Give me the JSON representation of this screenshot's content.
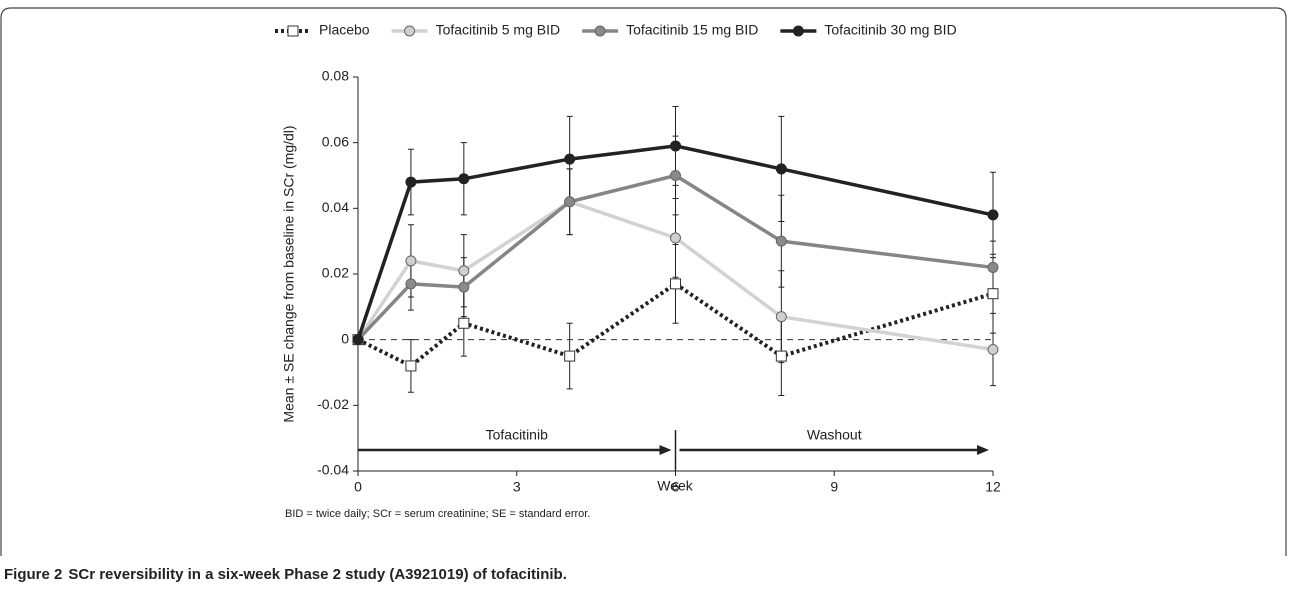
{
  "chart_data": {
    "type": "line",
    "x_label": "Week",
    "y_label": "Mean ± SE change from baseline in SCr (mg/dl)",
    "x": [
      0,
      1,
      2,
      4,
      6,
      8,
      12
    ],
    "xlim": [
      0,
      12
    ],
    "xticks": [
      0,
      3,
      6,
      9,
      12
    ],
    "ylim": [
      -0.04,
      0.08
    ],
    "yticks": [
      -0.04,
      -0.02,
      0,
      0.02,
      0.04,
      0.06,
      0.08
    ],
    "reference_line": 0,
    "series": [
      {
        "name": "Placebo",
        "color": "#222222",
        "dash": "dotted",
        "marker": "square",
        "marker_fill": "#ffffff",
        "values": [
          0,
          -0.008,
          0.005,
          -0.005,
          0.017,
          -0.005,
          0.014
        ],
        "errors": [
          null,
          0.008,
          0.01,
          0.01,
          0.012,
          0.012,
          0.012
        ]
      },
      {
        "name": "Tofacitinib 5 mg BID",
        "color": "#d2d2d2",
        "dash": "solid",
        "marker": "circle",
        "marker_fill": "#cfcfcf",
        "values": [
          0,
          0.024,
          0.021,
          0.042,
          0.031,
          0.007,
          -0.003
        ],
        "errors": [
          null,
          0.011,
          0.011,
          0.01,
          0.012,
          0.014,
          0.011
        ]
      },
      {
        "name": "Tofacitinib 15 mg BID",
        "color": "#858585",
        "dash": "solid",
        "marker": "circle",
        "marker_fill": "#8a8a8a",
        "values": [
          0,
          0.017,
          0.016,
          0.042,
          0.05,
          0.03,
          0.022
        ],
        "errors": [
          null,
          0.008,
          0.009,
          0.01,
          0.012,
          0.014,
          0.008
        ]
      },
      {
        "name": "Tofacitinib 30 mg BID",
        "color": "#222222",
        "dash": "solid",
        "marker": "circle",
        "marker_fill": "#222222",
        "values": [
          0,
          0.048,
          0.049,
          0.055,
          0.059,
          0.052,
          0.038
        ],
        "errors": [
          null,
          0.01,
          0.011,
          0.013,
          0.012,
          0.016,
          0.013
        ]
      }
    ],
    "phases": [
      {
        "label": "Tofacitinib",
        "start": 0,
        "end": 6
      },
      {
        "label": "Washout",
        "start": 6,
        "end": 12
      }
    ],
    "footnote": "BID = twice daily; SCr = serum creatinine; SE = standard error."
  },
  "caption": {
    "label": "Figure 2",
    "text": "SCr reversibility in a six-week Phase 2 study (A3921019) of tofacitinib."
  }
}
